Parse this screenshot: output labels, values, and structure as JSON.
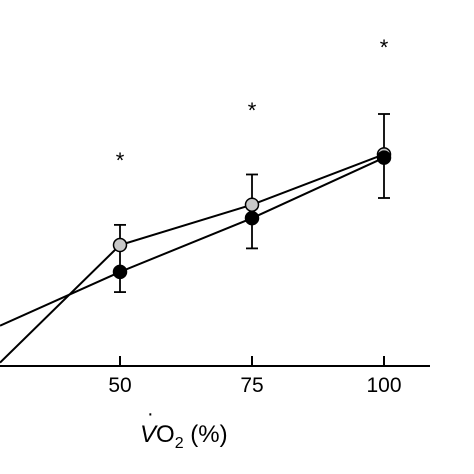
{
  "chart_data": {
    "type": "line",
    "x": [
      25,
      50,
      75,
      100
    ],
    "x_ticks": [
      "50",
      "75",
      "100"
    ],
    "xlabel": {
      "base": "V",
      "mid": "O",
      "sub": "2",
      "suffix": " (%)"
    },
    "annotations": [
      "*",
      "*",
      "*"
    ],
    "series": [
      {
        "style": "filled",
        "color": "#000000",
        "values": [
          null,
          72,
          56,
          38
        ],
        "errors": [
          null,
          0,
          0,
          0
        ]
      },
      {
        "style": "open",
        "color": "#c8c8c8",
        "values": [
          null,
          64,
          52,
          37
        ],
        "errors": [
          null,
          14,
          13,
          13
        ]
      }
    ],
    "line_start": {
      "filled": 88,
      "open": 99
    },
    "ylim": [
      0,
      100
    ],
    "xlim": [
      20,
      110
    ]
  }
}
